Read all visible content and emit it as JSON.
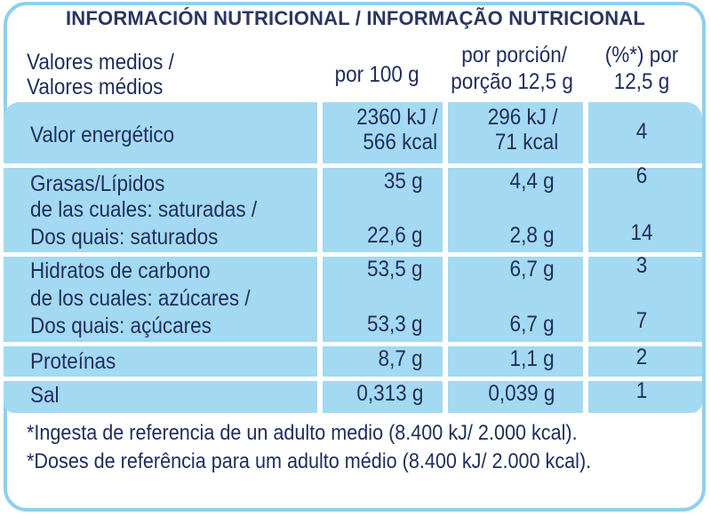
{
  "title": "INFORMACIÓN NUTRICIONAL / INFORMAÇÃO NUTRICIONAL",
  "header": {
    "label_line1": "Valores medios /",
    "label_line2": "Valores médios",
    "col1": "por 100 g",
    "col2_line1": "por porción/",
    "col2_line2": "porção 12,5 g",
    "col3_line1": "(%*) por",
    "col3_line2": "12,5 g"
  },
  "rows": [
    {
      "label": "Valor energético",
      "v100_line1": "2360 kJ /",
      "v100_line2": "566 kcal",
      "vportion_line1": "296 kJ /",
      "vportion_line2": "71 kcal",
      "pct": "4"
    },
    {
      "label": "Grasas/Lípidos",
      "v100": "35 g",
      "vportion": "4,4 g",
      "pct": "6"
    },
    {
      "label_line1": "de las cuales: saturadas /",
      "label_line2": "Dos quais: saturados",
      "v100": "22,6 g",
      "vportion": "2,8 g",
      "pct": "14"
    },
    {
      "label": "Hidratos de carbono",
      "v100": "53,5 g",
      "vportion": "6,7 g",
      "pct": "3"
    },
    {
      "label_line1": "de los cuales: azúcares /",
      "label_line2": "Dos quais: açúcares",
      "v100": "53,3 g",
      "vportion": "6,7 g",
      "pct": "7"
    },
    {
      "label": "Proteínas",
      "v100": "8,7 g",
      "vportion": "1,1 g",
      "pct": "2"
    },
    {
      "label": "Sal",
      "v100": "0,313 g",
      "vportion": "0,039 g",
      "pct": "1"
    }
  ],
  "footnotes": [
    "*Ingesta de referencia de un adulto medio (8.400 kJ/ 2.000 kcal).",
    "*Doses de referência para um adulto médio (8.400 kJ/ 2.000 kcal)."
  ],
  "colors": {
    "band": "#a3d9f1",
    "border": "#8ed0ec",
    "text": "#1f2d5c"
  }
}
